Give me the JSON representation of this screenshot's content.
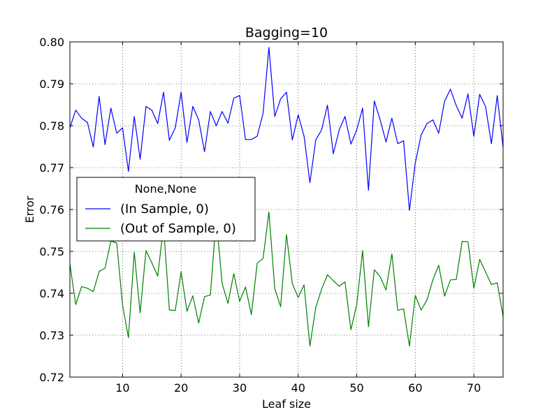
{
  "chart_data": {
    "type": "line",
    "title": "Bagging=10",
    "xlabel": "Leaf size",
    "ylabel": "Error",
    "xlim": [
      1,
      75
    ],
    "ylim": [
      0.72,
      0.8
    ],
    "xticks": [
      10,
      20,
      30,
      40,
      50,
      60,
      70
    ],
    "xtick_labels": [
      "10",
      "20",
      "30",
      "40",
      "50",
      "60",
      "70"
    ],
    "yticks": [
      0.72,
      0.73,
      0.74,
      0.75,
      0.76,
      0.77,
      0.78,
      0.79,
      0.8
    ],
    "ytick_labels": [
      "0.72",
      "0.73",
      "0.74",
      "0.75",
      "0.76",
      "0.77",
      "0.78",
      "0.79",
      "0.80"
    ],
    "grid": true,
    "legend": {
      "title": "None,None",
      "placement": "center-left"
    },
    "series": [
      {
        "name": "(In Sample, 0)",
        "color": "#0000ff",
        "x": [
          1,
          2,
          3,
          4,
          5,
          6,
          7,
          8,
          9,
          10,
          11,
          12,
          13,
          14,
          15,
          16,
          17,
          18,
          19,
          20,
          21,
          22,
          23,
          24,
          25,
          26,
          27,
          28,
          29,
          30,
          31,
          32,
          33,
          34,
          35,
          36,
          37,
          38,
          39,
          40,
          41,
          42,
          43,
          44,
          45,
          46,
          47,
          48,
          49,
          50,
          51,
          52,
          53,
          54,
          55,
          56,
          57,
          58,
          59,
          60,
          61,
          62,
          63,
          64,
          65,
          66,
          67,
          68,
          69,
          70,
          71,
          72,
          73,
          74,
          75
        ],
        "values": [
          0.7795,
          0.7837,
          0.7818,
          0.7808,
          0.7749,
          0.787,
          0.7755,
          0.7842,
          0.7782,
          0.7795,
          0.7691,
          0.7822,
          0.772,
          0.7846,
          0.7837,
          0.7805,
          0.788,
          0.7765,
          0.7795,
          0.788,
          0.776,
          0.7846,
          0.7814,
          0.7738,
          0.7834,
          0.78,
          0.7834,
          0.7806,
          0.7866,
          0.7872,
          0.7767,
          0.7767,
          0.7775,
          0.783,
          0.7987,
          0.7822,
          0.7864,
          0.788,
          0.7766,
          0.7826,
          0.7775,
          0.7664,
          0.7766,
          0.779,
          0.7849,
          0.7733,
          0.779,
          0.7822,
          0.7756,
          0.779,
          0.7842,
          0.7646,
          0.7859,
          0.7814,
          0.7761,
          0.7818,
          0.7757,
          0.7764,
          0.7598,
          0.7711,
          0.7778,
          0.7805,
          0.7814,
          0.7782,
          0.7858,
          0.7887,
          0.7848,
          0.7818,
          0.7876,
          0.7775,
          0.7875,
          0.7846,
          0.7757,
          0.7872,
          0.7748
        ]
      },
      {
        "name": "(Out of Sample, 0)",
        "color": "#008000",
        "x": [
          1,
          2,
          3,
          4,
          5,
          6,
          7,
          8,
          9,
          10,
          11,
          12,
          13,
          14,
          15,
          16,
          17,
          18,
          19,
          20,
          21,
          22,
          23,
          24,
          25,
          26,
          27,
          28,
          29,
          30,
          31,
          32,
          33,
          34,
          35,
          36,
          37,
          38,
          39,
          40,
          41,
          42,
          43,
          44,
          45,
          46,
          47,
          48,
          49,
          50,
          51,
          52,
          53,
          54,
          55,
          56,
          57,
          58,
          59,
          60,
          61,
          62,
          63,
          64,
          65,
          66,
          67,
          68,
          69,
          70,
          71,
          72,
          73,
          74,
          75
        ],
        "values": [
          0.747,
          0.7373,
          0.7416,
          0.7412,
          0.7404,
          0.7452,
          0.746,
          0.7525,
          0.752,
          0.7372,
          0.7294,
          0.7498,
          0.7353,
          0.7502,
          0.7473,
          0.7441,
          0.756,
          0.736,
          0.7359,
          0.7451,
          0.7357,
          0.7394,
          0.7329,
          0.7392,
          0.7396,
          0.758,
          0.7424,
          0.7376,
          0.7447,
          0.7381,
          0.7415,
          0.7349,
          0.7472,
          0.7483,
          0.7594,
          0.7411,
          0.7368,
          0.754,
          0.7423,
          0.739,
          0.742,
          0.7274,
          0.7366,
          0.741,
          0.7444,
          0.743,
          0.7417,
          0.7427,
          0.7313,
          0.7373,
          0.7502,
          0.732,
          0.7456,
          0.744,
          0.7408,
          0.7494,
          0.7359,
          0.7363,
          0.7274,
          0.7395,
          0.736,
          0.7384,
          0.7432,
          0.7467,
          0.7393,
          0.7432,
          0.7433,
          0.7524,
          0.7523,
          0.7412,
          0.7481,
          0.7451,
          0.7421,
          0.7425,
          0.7345
        ]
      }
    ]
  }
}
